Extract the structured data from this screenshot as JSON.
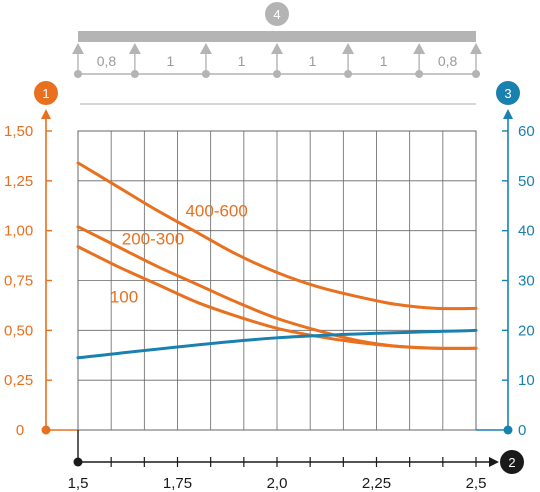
{
  "chart_data": {
    "type": "line",
    "x": [
      1.5,
      1.75,
      2.0,
      2.25,
      2.5
    ],
    "x_tick_labels": [
      "1,5",
      "1,75",
      "2,0",
      "2,25",
      "2,5"
    ],
    "xlim": [
      1.5,
      2.5
    ],
    "ylim_left": [
      0,
      1.5
    ],
    "y_left_tick_labels": [
      "0",
      "0,25",
      "0,50",
      "0,75",
      "1,00",
      "1,25",
      "1,50"
    ],
    "ylim_right": [
      0,
      60
    ],
    "y_right_tick_labels": [
      "0",
      "10",
      "20",
      "30",
      "40",
      "50",
      "60"
    ],
    "grid": true,
    "axis_badges": {
      "left": "1",
      "bottom": "2",
      "right": "3",
      "top": "4"
    },
    "series": [
      {
        "name": "400-600",
        "axis": "left",
        "color": "#e8701e",
        "x": [
          1.5,
          1.6,
          1.7,
          1.8,
          1.9,
          2.0,
          2.1,
          2.2,
          2.3,
          2.4,
          2.5
        ],
        "y": [
          1.34,
          1.22,
          1.1,
          0.99,
          0.88,
          0.79,
          0.72,
          0.67,
          0.63,
          0.61,
          0.61
        ]
      },
      {
        "name": "200-300",
        "axis": "left",
        "color": "#e8701e",
        "x": [
          1.5,
          1.6,
          1.7,
          1.8,
          1.9,
          2.0,
          2.1,
          2.2,
          2.3,
          2.4,
          2.5
        ],
        "y": [
          1.02,
          0.92,
          0.82,
          0.73,
          0.64,
          0.56,
          0.5,
          0.45,
          0.42,
          0.41,
          0.41
        ]
      },
      {
        "name": "100",
        "axis": "left",
        "color": "#e8701e",
        "x": [
          1.5,
          1.6,
          1.7,
          1.8,
          1.9,
          2.0,
          2.1,
          2.2,
          2.3,
          2.4,
          2.5
        ],
        "y": [
          0.92,
          0.82,
          0.73,
          0.64,
          0.57,
          0.51,
          0.47,
          0.44,
          0.42,
          0.41,
          0.41
        ]
      },
      {
        "name": "",
        "axis": "right",
        "color": "#1a80b0",
        "x": [
          1.5,
          2.0,
          2.5
        ],
        "y": [
          14.5,
          18.5,
          20.0
        ]
      }
    ],
    "beam": {
      "support_count": 7,
      "span_labels": [
        "0,8",
        "1",
        "1",
        "1",
        "1",
        "0,8"
      ],
      "spans": [
        0.8,
        1,
        1,
        1,
        1,
        0.8
      ]
    },
    "colors": {
      "left_axis": "#e8701e",
      "right_axis": "#1a80b0",
      "bottom_axis": "#1a1a1a",
      "beam": "#b4b4b4",
      "grid": "#666666"
    }
  }
}
